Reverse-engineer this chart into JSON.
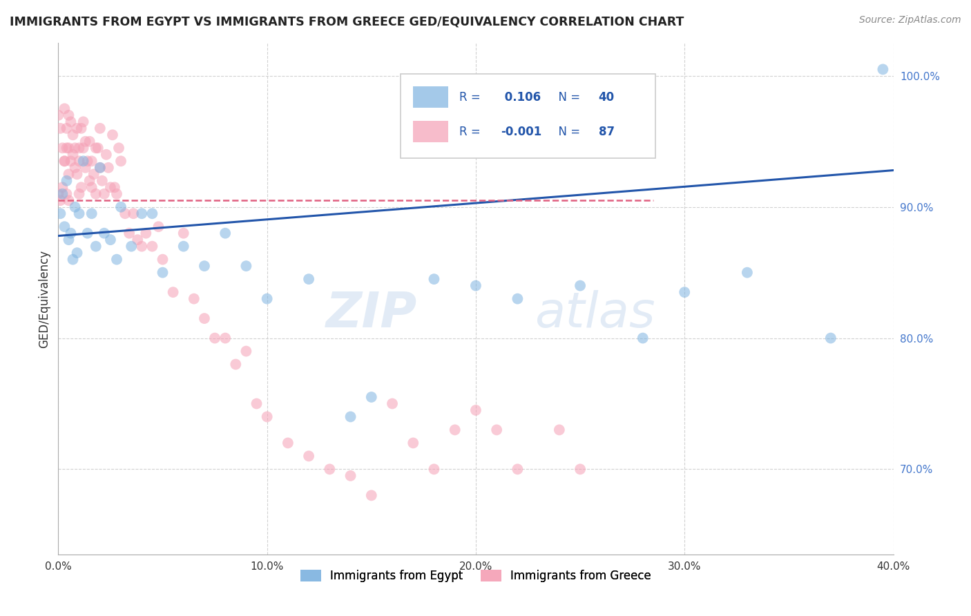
{
  "title": "IMMIGRANTS FROM EGYPT VS IMMIGRANTS FROM GREECE GED/EQUIVALENCY CORRELATION CHART",
  "source": "Source: ZipAtlas.com",
  "ylabel": "GED/Equivalency",
  "legend_egypt": "Immigrants from Egypt",
  "legend_greece": "Immigrants from Greece",
  "R_egypt": 0.106,
  "N_egypt": 40,
  "R_greece": -0.001,
  "N_greece": 87,
  "egypt_color": "#7eb3e0",
  "greece_color": "#f5a0b5",
  "egypt_line_color": "#2255AA",
  "greece_line_color": "#e06080",
  "tick_color": "#4477CC",
  "xlim": [
    0.0,
    0.4
  ],
  "ylim": [
    0.635,
    1.025
  ],
  "xticks": [
    0.0,
    0.1,
    0.2,
    0.3,
    0.4
  ],
  "yticks": [
    0.7,
    0.8,
    0.9,
    1.0
  ],
  "ytick_labels": [
    "70.0%",
    "80.0%",
    "90.0%",
    "100.0%"
  ],
  "xtick_labels": [
    "0.0%",
    "10.0%",
    "20.0%",
    "30.0%",
    "40.0%"
  ],
  "watermark_zip": "ZIP",
  "watermark_atlas": "atlas",
  "egypt_x": [
    0.001,
    0.002,
    0.003,
    0.004,
    0.005,
    0.006,
    0.007,
    0.008,
    0.009,
    0.01,
    0.012,
    0.014,
    0.016,
    0.018,
    0.02,
    0.022,
    0.025,
    0.028,
    0.03,
    0.035,
    0.04,
    0.045,
    0.05,
    0.06,
    0.07,
    0.08,
    0.09,
    0.1,
    0.12,
    0.14,
    0.15,
    0.18,
    0.2,
    0.22,
    0.25,
    0.28,
    0.3,
    0.33,
    0.37,
    0.395
  ],
  "egypt_y": [
    0.895,
    0.91,
    0.885,
    0.92,
    0.875,
    0.88,
    0.86,
    0.9,
    0.865,
    0.895,
    0.935,
    0.88,
    0.895,
    0.87,
    0.93,
    0.88,
    0.875,
    0.86,
    0.9,
    0.87,
    0.895,
    0.895,
    0.85,
    0.87,
    0.855,
    0.88,
    0.855,
    0.83,
    0.845,
    0.74,
    0.755,
    0.845,
    0.84,
    0.83,
    0.84,
    0.8,
    0.835,
    0.85,
    0.8,
    1.005
  ],
  "greece_x": [
    0.0,
    0.001,
    0.002,
    0.003,
    0.003,
    0.004,
    0.004,
    0.005,
    0.005,
    0.006,
    0.006,
    0.007,
    0.007,
    0.008,
    0.008,
    0.009,
    0.009,
    0.01,
    0.01,
    0.01,
    0.011,
    0.011,
    0.012,
    0.012,
    0.013,
    0.013,
    0.014,
    0.015,
    0.015,
    0.016,
    0.016,
    0.017,
    0.018,
    0.018,
    0.019,
    0.02,
    0.02,
    0.021,
    0.022,
    0.023,
    0.024,
    0.025,
    0.026,
    0.027,
    0.028,
    0.029,
    0.03,
    0.032,
    0.034,
    0.036,
    0.038,
    0.04,
    0.042,
    0.045,
    0.048,
    0.05,
    0.055,
    0.06,
    0.065,
    0.07,
    0.075,
    0.08,
    0.085,
    0.09,
    0.095,
    0.1,
    0.11,
    0.12,
    0.13,
    0.14,
    0.15,
    0.16,
    0.17,
    0.18,
    0.19,
    0.2,
    0.21,
    0.22,
    0.24,
    0.25,
    0.0,
    0.001,
    0.002,
    0.003,
    0.004,
    0.005,
    0.005
  ],
  "greece_y": [
    0.97,
    0.96,
    0.945,
    0.935,
    0.975,
    0.96,
    0.945,
    0.97,
    0.945,
    0.935,
    0.965,
    0.94,
    0.955,
    0.93,
    0.945,
    0.96,
    0.925,
    0.91,
    0.945,
    0.935,
    0.96,
    0.915,
    0.945,
    0.965,
    0.93,
    0.95,
    0.935,
    0.92,
    0.95,
    0.935,
    0.915,
    0.925,
    0.91,
    0.945,
    0.945,
    0.93,
    0.96,
    0.92,
    0.91,
    0.94,
    0.93,
    0.915,
    0.955,
    0.915,
    0.91,
    0.945,
    0.935,
    0.895,
    0.88,
    0.895,
    0.875,
    0.87,
    0.88,
    0.87,
    0.885,
    0.86,
    0.835,
    0.88,
    0.83,
    0.815,
    0.8,
    0.8,
    0.78,
    0.79,
    0.75,
    0.74,
    0.72,
    0.71,
    0.7,
    0.695,
    0.68,
    0.75,
    0.72,
    0.7,
    0.73,
    0.745,
    0.73,
    0.7,
    0.73,
    0.7,
    0.91,
    0.905,
    0.915,
    0.935,
    0.91,
    0.925,
    0.905
  ],
  "egypt_trendline_x": [
    0.0,
    0.4
  ],
  "egypt_trendline_y": [
    0.878,
    0.928
  ],
  "greece_trendline_x": [
    0.0,
    0.285
  ],
  "greece_trendline_y": [
    0.905,
    0.905
  ]
}
